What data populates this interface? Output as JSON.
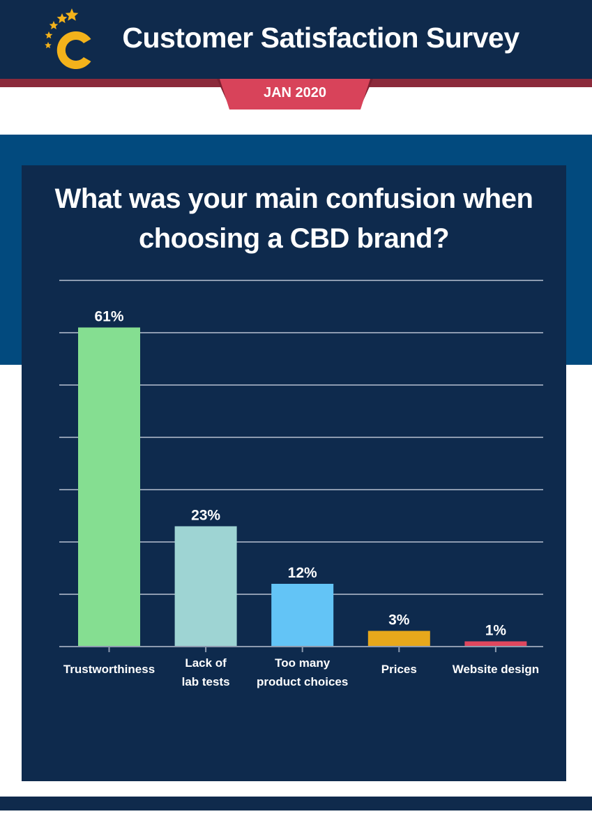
{
  "header": {
    "title": "Customer Satisfaction Survey",
    "date_label": "JAN 2020",
    "logo_icon": "stars-c-logo-icon"
  },
  "colors": {
    "navy": "#0f2a4c",
    "panel": "#0e2a4d",
    "band_blue": "#024a7e",
    "ribbon_red": "#d8435a",
    "stripe_maroon": "#8b2a3b",
    "logo_gold": "#f3b21b"
  },
  "chart_data": {
    "type": "bar",
    "title": "What was your main confusion when choosing a CBD brand?",
    "categories": [
      "Trustworthiness",
      "Lack of lab tests",
      "Too many product choices",
      "Prices",
      "Website design"
    ],
    "category_lines": [
      [
        "Trustworthiness"
      ],
      [
        "Lack of",
        "lab tests"
      ],
      [
        "Too many",
        "product choices"
      ],
      [
        "Prices"
      ],
      [
        "Website design"
      ]
    ],
    "values": [
      61,
      23,
      12,
      3,
      1
    ],
    "value_labels": [
      "61%",
      "23%",
      "12%",
      "3%",
      "1%"
    ],
    "bar_colors": [
      "#85de91",
      "#9ed4d3",
      "#63c4f6",
      "#e7a81b",
      "#e0475e"
    ],
    "ylim": [
      0,
      70
    ],
    "gridline_step": 10,
    "grid": true
  }
}
